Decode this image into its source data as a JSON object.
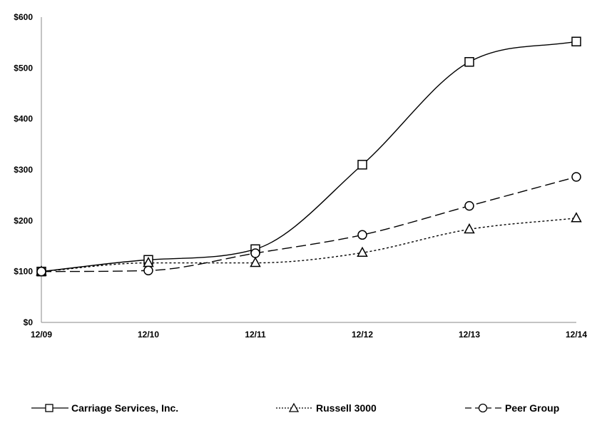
{
  "chart_data": {
    "type": "line",
    "title": "",
    "xlabel": "",
    "ylabel": "",
    "categories": [
      "12/09",
      "12/10",
      "12/11",
      "12/12",
      "12/13",
      "12/14"
    ],
    "y_ticks": [
      "$0",
      "$100",
      "$200",
      "$300",
      "$400",
      "$500",
      "$600"
    ],
    "ylim": [
      0,
      600
    ],
    "grid": false,
    "legend_position": "bottom",
    "series": [
      {
        "name": "Carriage Services, Inc.",
        "marker": "square",
        "dash": "solid",
        "color": "#000000",
        "values": [
          100,
          123,
          144,
          310,
          512,
          552
        ]
      },
      {
        "name": "Russell 3000",
        "marker": "triangle",
        "dash": "dotted",
        "color": "#000000",
        "values": [
          100,
          117,
          117,
          137,
          183,
          205
        ]
      },
      {
        "name": "Peer Group",
        "marker": "circle",
        "dash": "dashed",
        "color": "#000000",
        "values": [
          100,
          102,
          136,
          172,
          229,
          286
        ]
      }
    ]
  }
}
